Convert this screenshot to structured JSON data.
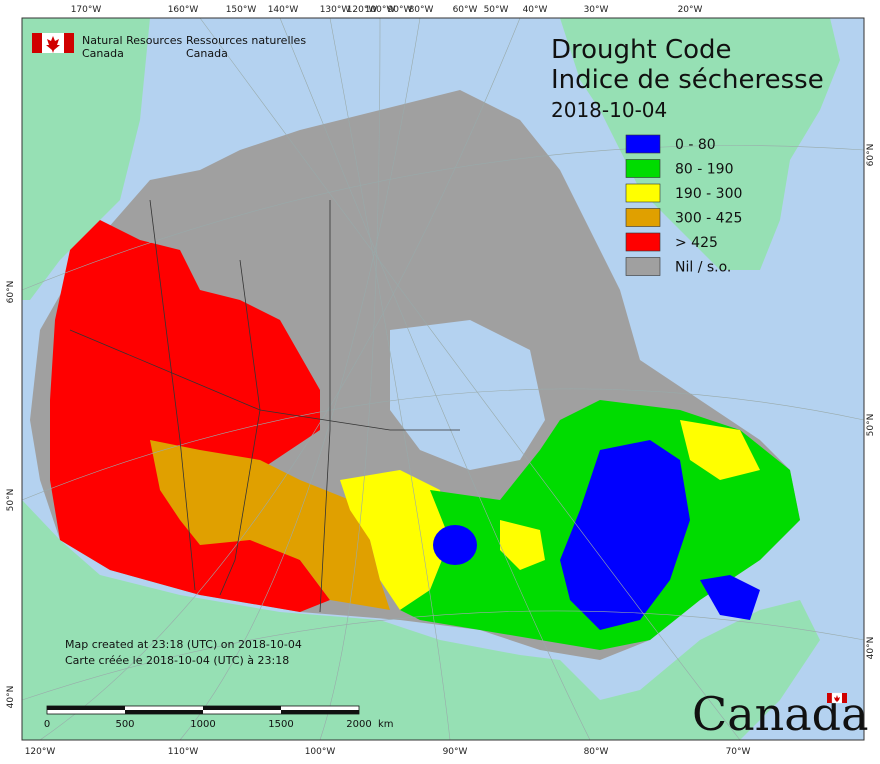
{
  "agency": {
    "en_line1": "Natural Resources",
    "en_line2": "Canada",
    "fr_line1": "Ressources naturelles",
    "fr_line2": "Canada"
  },
  "title": {
    "en": "Drought Code",
    "fr": "Indice de sécheresse",
    "date": "2018-10-04"
  },
  "legend": [
    {
      "label": "0 - 80",
      "color": "#0000ff"
    },
    {
      "label": "80 - 190",
      "color": "#00dc00"
    },
    {
      "label": "190 - 300",
      "color": "#ffff00"
    },
    {
      "label": "300 - 425",
      "color": "#e0a000"
    },
    {
      "label": "> 425",
      "color": "#ff0000"
    },
    {
      "label": "Nil / s.o.",
      "color": "#a0a0a0"
    }
  ],
  "colors": {
    "ocean": "#b4d2f0",
    "foreign_land": "#96e0b4",
    "nil": "#a0a0a0"
  },
  "top_ticks": [
    "170°W",
    "160°W",
    "150°W",
    "140°W",
    "130°W",
    "120°W",
    "100°W",
    "90°W",
    "80°W",
    "60°W",
    "50°W",
    "40°W",
    "30°W",
    "20°W"
  ],
  "bottom_ticks": [
    "120°W",
    "110°W",
    "100°W",
    "90°W",
    "80°W",
    "70°W"
  ],
  "left_ticks": [
    "60°N",
    "50°N",
    "40°N"
  ],
  "right_ticks": [
    "60°N",
    "50°N",
    "40°N"
  ],
  "notes": {
    "en": "Map created at 23:18 (UTC) on 2018-10-04",
    "fr": "Carte créée le 2018-10-04 (UTC) à 23:18"
  },
  "scale": {
    "labels": [
      "0",
      "500",
      "1000",
      "1500",
      "2000"
    ],
    "unit": "km"
  },
  "wordmark": "Canada"
}
